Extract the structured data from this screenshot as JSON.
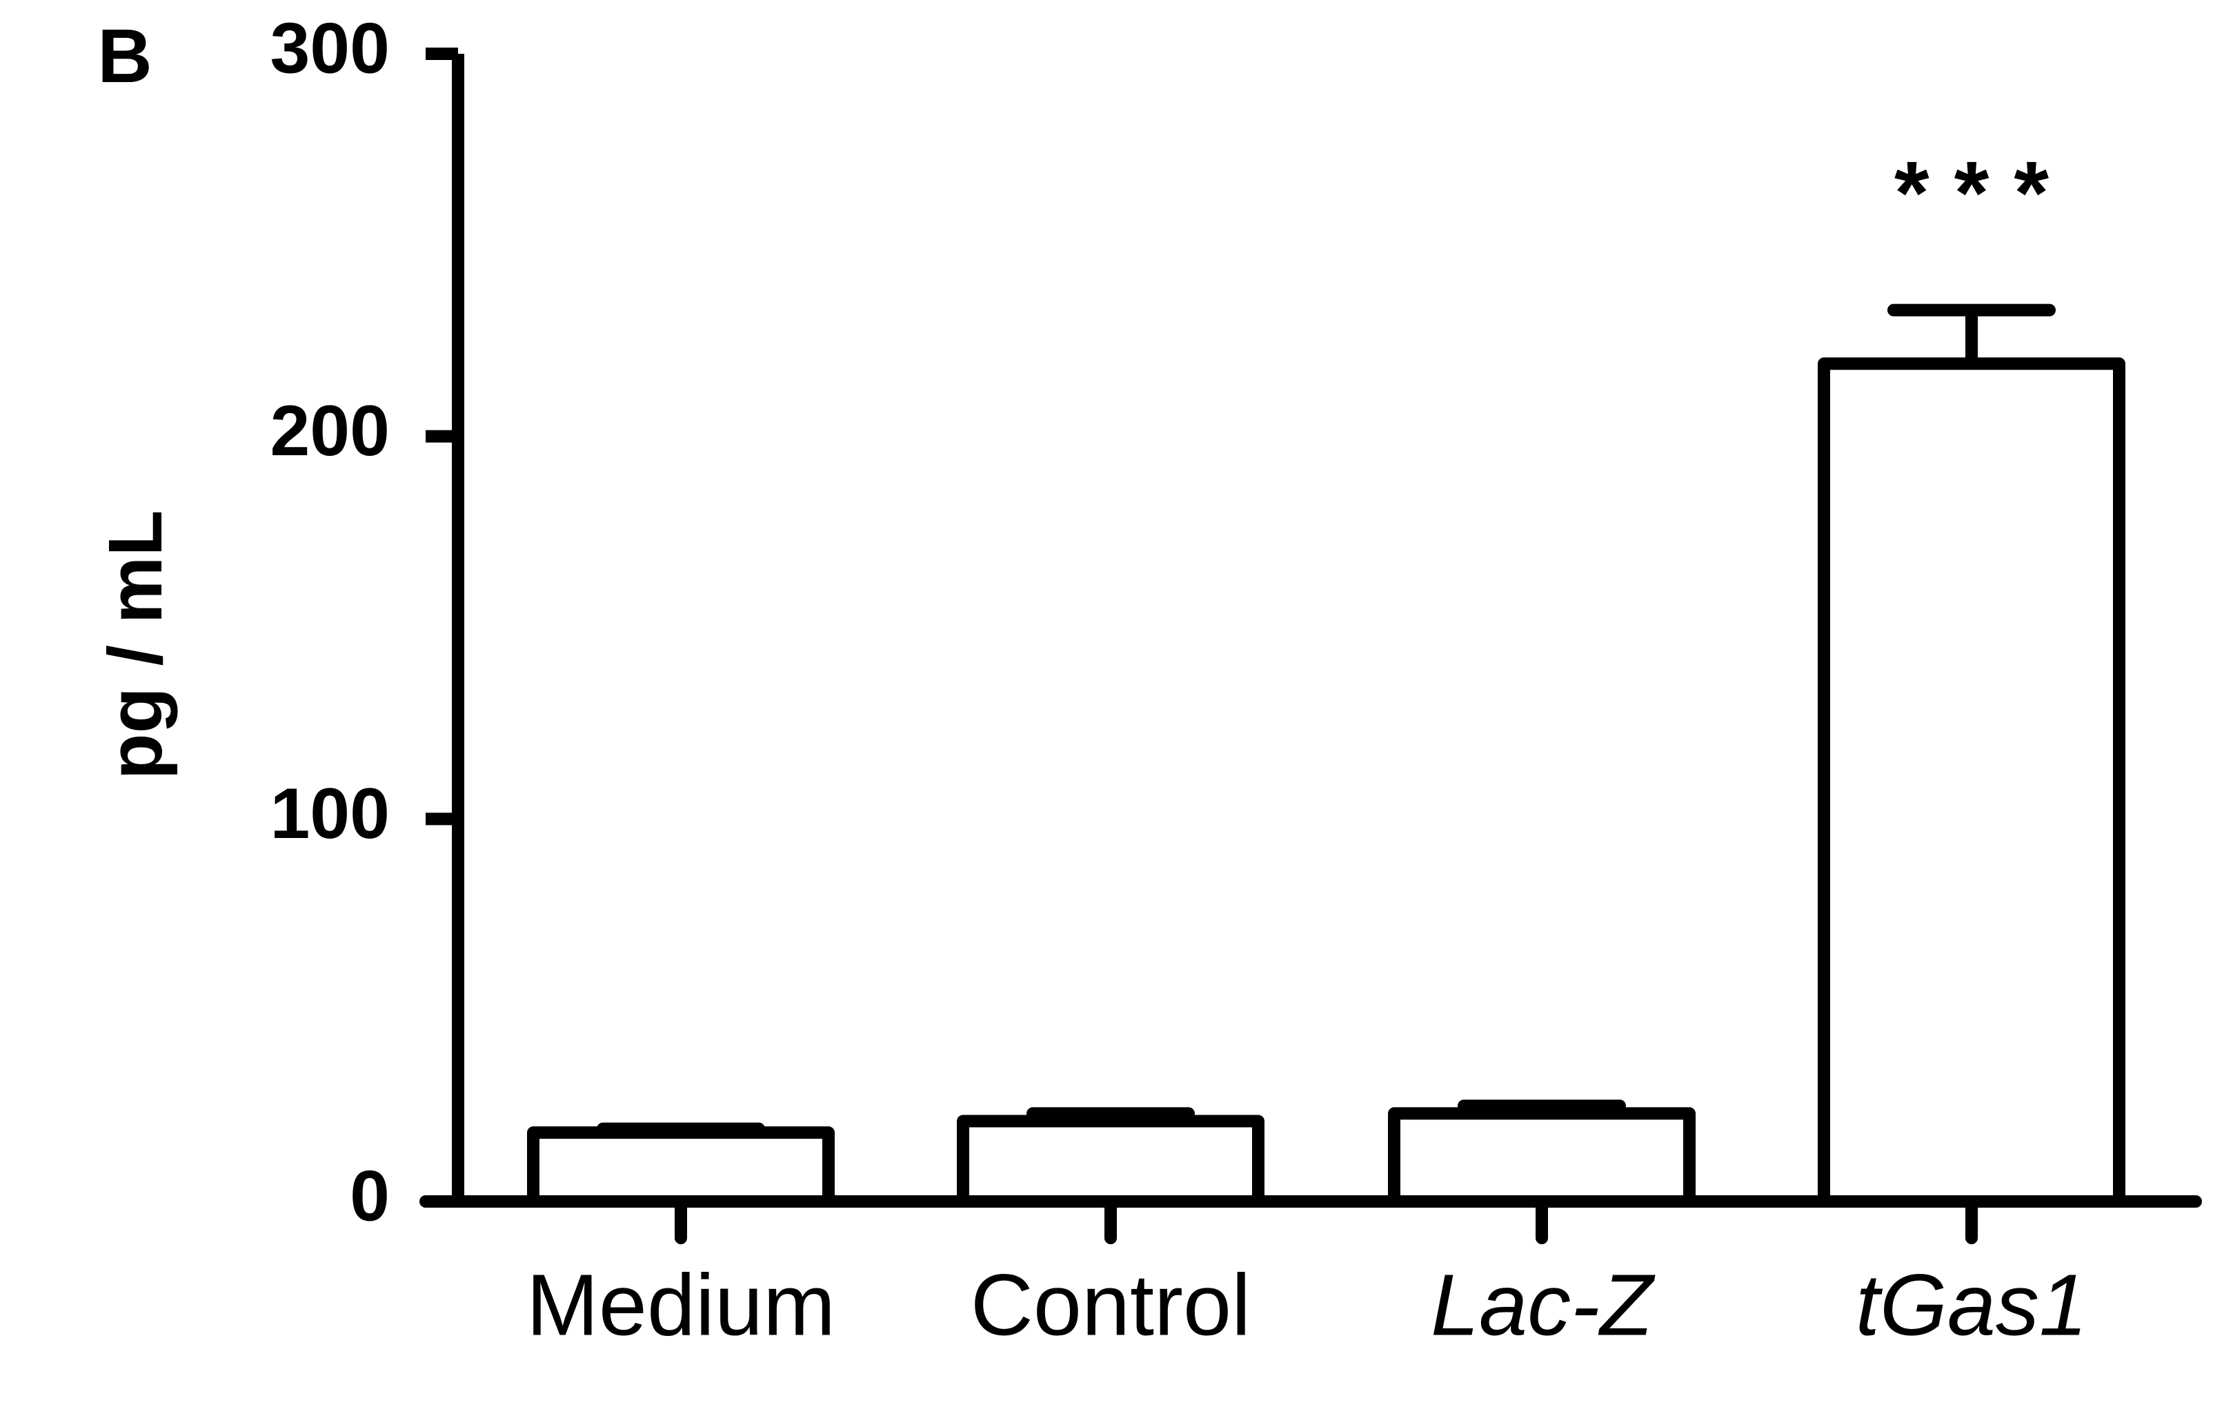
{
  "chart_data": {
    "type": "bar",
    "panel_label": "B",
    "y_label": "pg / mL",
    "categories": [
      "Medium",
      "Control",
      "Lac-Z",
      "tGas1"
    ],
    "italic_categories": [
      false,
      false,
      true,
      true
    ],
    "values": [
      18,
      21,
      23,
      219
    ],
    "errors": [
      1,
      2,
      2,
      14
    ],
    "annotations": [
      {
        "category": 3,
        "text": "* * *"
      }
    ],
    "color": "#ffffff",
    "edgecolor": "#000000",
    "ylim": [
      0,
      300
    ],
    "yticks": [
      0,
      100,
      200,
      300
    ],
    "grid": false
  }
}
